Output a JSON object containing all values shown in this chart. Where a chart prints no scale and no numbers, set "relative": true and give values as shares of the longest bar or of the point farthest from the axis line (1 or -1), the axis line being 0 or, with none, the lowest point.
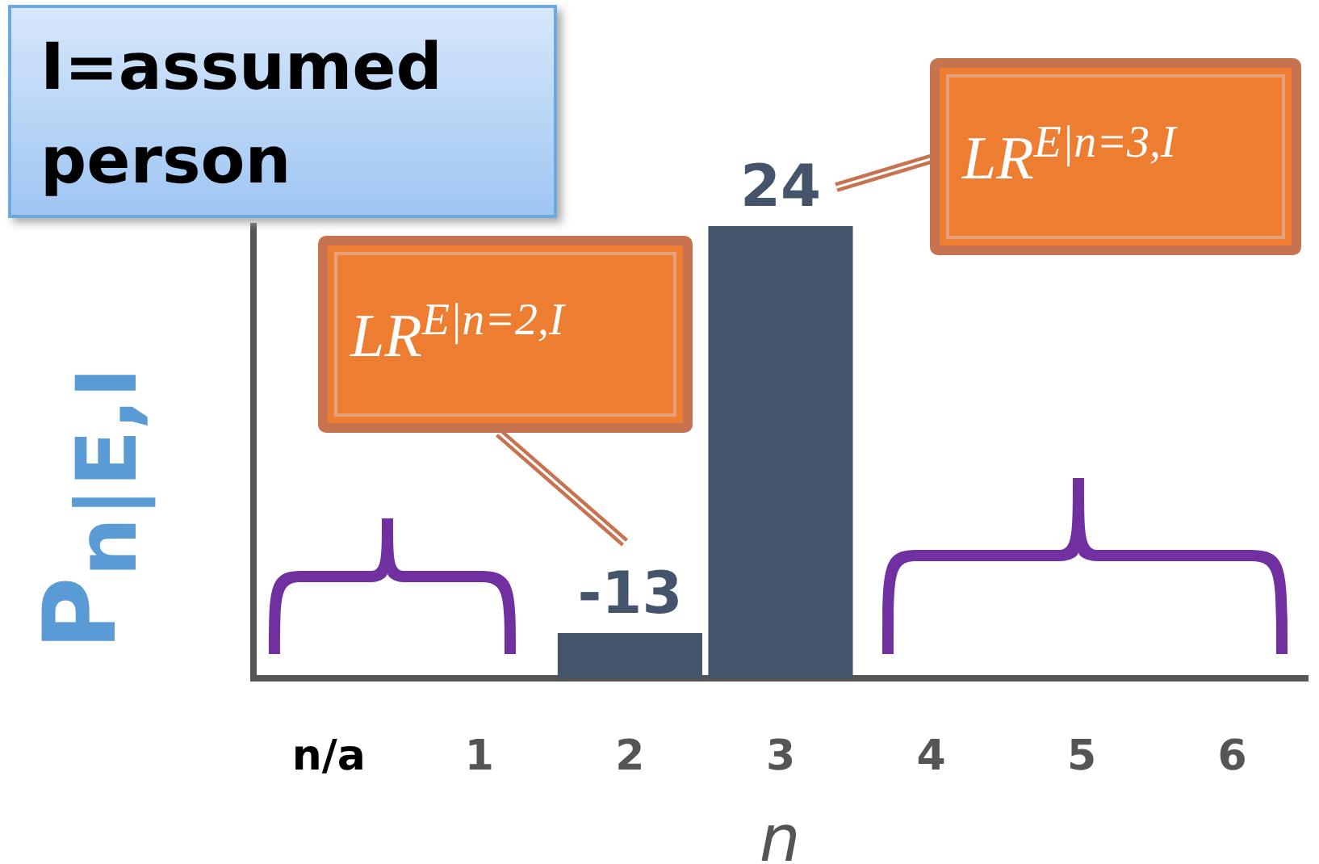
{
  "chart_data": {
    "type": "bar",
    "relative": true,
    "xlabel": "n",
    "ylabel": "P$_{n|E,I}$",
    "categories": [
      "n/a",
      "1",
      "2",
      "3",
      "4",
      "5",
      "6"
    ],
    "values": [
      null,
      null,
      0.1,
      1,
      null,
      null,
      null
    ],
    "color": "#44546a",
    "annotations": [
      "I=assumed person",
      "LR$^{E|n=2,I}$",
      "LR$^{E|n=3,I}$",
      "-13",
      "24"
    ],
    "grid": false,
    "legend": false
  }
}
